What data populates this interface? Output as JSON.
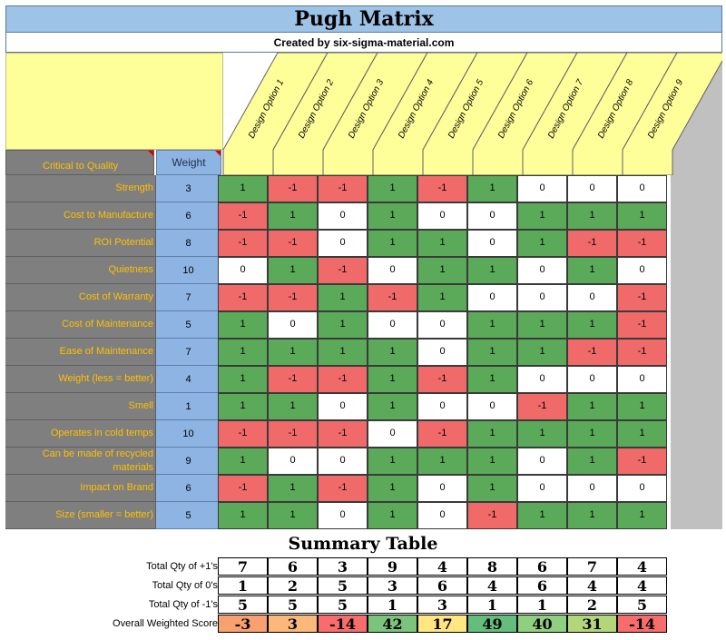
{
  "header": {
    "title": "Pugh Matrix",
    "subtitle": "Created by six-sigma-material.com"
  },
  "matrix": {
    "ctq_header": "Critical to Quality",
    "weight_header": "Weight",
    "options": [
      "Design Option 1",
      "Design Option 2",
      "Design Option 3",
      "Design Option 4",
      "Design Option 5",
      "Design Option 6",
      "Design Option 7",
      "Design Option 8",
      "Design Option 9"
    ],
    "rows": [
      {
        "label": "Strength",
        "weight": "3",
        "values": [
          "1",
          "-1",
          "-1",
          "1",
          "-1",
          "1",
          "0",
          "0",
          "0"
        ]
      },
      {
        "label": "Cost to Manufacture",
        "weight": "6",
        "values": [
          "-1",
          "1",
          "0",
          "1",
          "0",
          "0",
          "1",
          "1",
          "1"
        ]
      },
      {
        "label": "ROI Potential",
        "weight": "8",
        "values": [
          "-1",
          "-1",
          "0",
          "1",
          "1",
          "0",
          "1",
          "-1",
          "-1"
        ]
      },
      {
        "label": "Quietness",
        "weight": "10",
        "values": [
          "0",
          "1",
          "-1",
          "0",
          "1",
          "1",
          "0",
          "1",
          "0"
        ]
      },
      {
        "label": "Cost of Warranty",
        "weight": "7",
        "values": [
          "-1",
          "-1",
          "1",
          "-1",
          "1",
          "0",
          "0",
          "0",
          "-1"
        ]
      },
      {
        "label": "Cost of Maintenance",
        "weight": "5",
        "values": [
          "1",
          "0",
          "1",
          "0",
          "0",
          "1",
          "1",
          "1",
          "-1"
        ]
      },
      {
        "label": "Ease of Maintenance",
        "weight": "7",
        "values": [
          "1",
          "1",
          "1",
          "1",
          "0",
          "1",
          "1",
          "-1",
          "-1"
        ]
      },
      {
        "label": "Weight (less = better)",
        "weight": "4",
        "values": [
          "1",
          "-1",
          "-1",
          "1",
          "-1",
          "1",
          "0",
          "0",
          "0"
        ]
      },
      {
        "label": "Smell",
        "weight": "1",
        "values": [
          "1",
          "1",
          "0",
          "1",
          "0",
          "0",
          "-1",
          "1",
          "1"
        ]
      },
      {
        "label": "Operates in cold temps",
        "weight": "10",
        "values": [
          "-1",
          "-1",
          "-1",
          "0",
          "-1",
          "1",
          "1",
          "1",
          "1"
        ]
      },
      {
        "label": "Can be made of recycled materials",
        "weight": "9",
        "values": [
          "1",
          "0",
          "0",
          "1",
          "1",
          "1",
          "0",
          "1",
          "-1"
        ]
      },
      {
        "label": "Impact on Brand",
        "weight": "6",
        "values": [
          "-1",
          "1",
          "-1",
          "1",
          "0",
          "1",
          "0",
          "0",
          "0"
        ]
      },
      {
        "label": "Size (smaller = better)",
        "weight": "5",
        "values": [
          "1",
          "1",
          "0",
          "1",
          "0",
          "-1",
          "1",
          "1",
          "1"
        ]
      }
    ]
  },
  "summary": {
    "title": "Summary Table",
    "rows": [
      {
        "label": "Total Qty of +1's",
        "values": [
          "7",
          "6",
          "3",
          "9",
          "4",
          "8",
          "6",
          "7",
          "4"
        ]
      },
      {
        "label": "Total Qty of 0's",
        "values": [
          "1",
          "2",
          "5",
          "3",
          "6",
          "4",
          "6",
          "4",
          "4"
        ]
      },
      {
        "label": "Total Qty of -1's",
        "values": [
          "5",
          "5",
          "5",
          "1",
          "3",
          "1",
          "1",
          "2",
          "5"
        ]
      },
      {
        "label": "Overall Weighted Score",
        "values": [
          "-3",
          "3",
          "-14",
          "42",
          "17",
          "49",
          "40",
          "31",
          "-14"
        ]
      }
    ],
    "score_colors": [
      "#f8a070",
      "#fbb87a",
      "#f86c6c",
      "#7cc47c",
      "#ffe680",
      "#63be7b",
      "#8fcf80",
      "#b3d67a",
      "#f86c6c"
    ]
  },
  "colors": {
    "positive": "#5aaa5a",
    "negative": "#f06a6a",
    "neutral": "#ffffff",
    "label_text": "#ffc000",
    "label_bg": "#7f7f7f",
    "weight_bg": "#8db4e2",
    "title_bg": "#9dc3e6",
    "header_bg": "#ffff99"
  }
}
